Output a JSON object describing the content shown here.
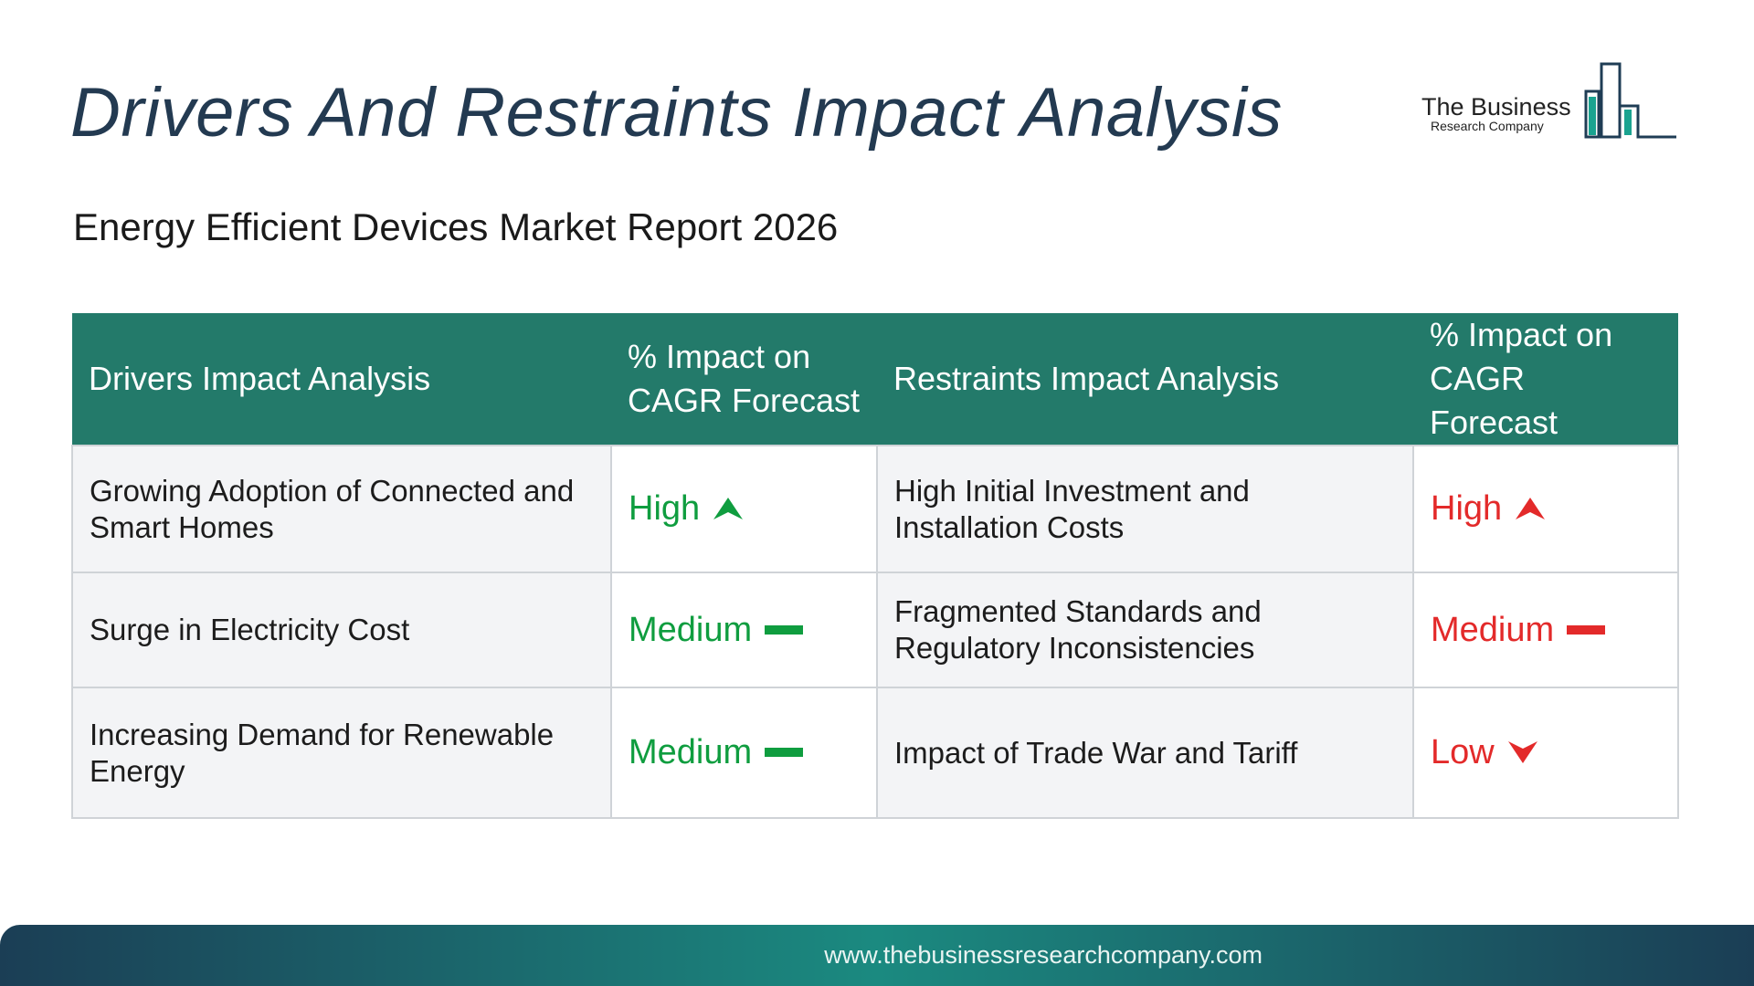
{
  "title": "Drivers And Restraints Impact Analysis",
  "subtitle": "Energy Efficient Devices Market Report 2026",
  "logo": {
    "line1": "The Business",
    "line2": "Research Company"
  },
  "table": {
    "headers": {
      "drivers": "Drivers Impact Analysis",
      "drivers_impact": "% Impact on CAGR Forecast",
      "restraints": "Restraints Impact Analysis",
      "restraints_impact": "% Impact on CAGR Forecast"
    },
    "rows": [
      {
        "driver": "Growing Adoption of Connected and Smart Homes",
        "driver_impact": "High",
        "driver_icon": "up-arrow-icon",
        "restraint": "High Initial Investment and Installation Costs",
        "restraint_impact": "High",
        "restraint_icon": "up-arrow-icon"
      },
      {
        "driver": "Surge in Electricity Cost",
        "driver_impact": "Medium",
        "driver_icon": "dash-icon",
        "restraint": "Fragmented Standards and Regulatory Inconsistencies",
        "restraint_impact": "Medium",
        "restraint_icon": "dash-icon"
      },
      {
        "driver": "Increasing Demand for Renewable Energy",
        "driver_impact": "Medium",
        "driver_icon": "dash-icon",
        "restraint": "Impact of Trade War and Tariff",
        "restraint_impact": "Low",
        "restraint_icon": "down-arrow-icon"
      }
    ]
  },
  "colors": {
    "header_bg": "#237a6a",
    "driver_impact": "#0f9d3f",
    "restraint_impact": "#e32a2a",
    "title": "#233a51"
  },
  "footer": {
    "url": "www.thebusinessresearchcompany.com"
  }
}
